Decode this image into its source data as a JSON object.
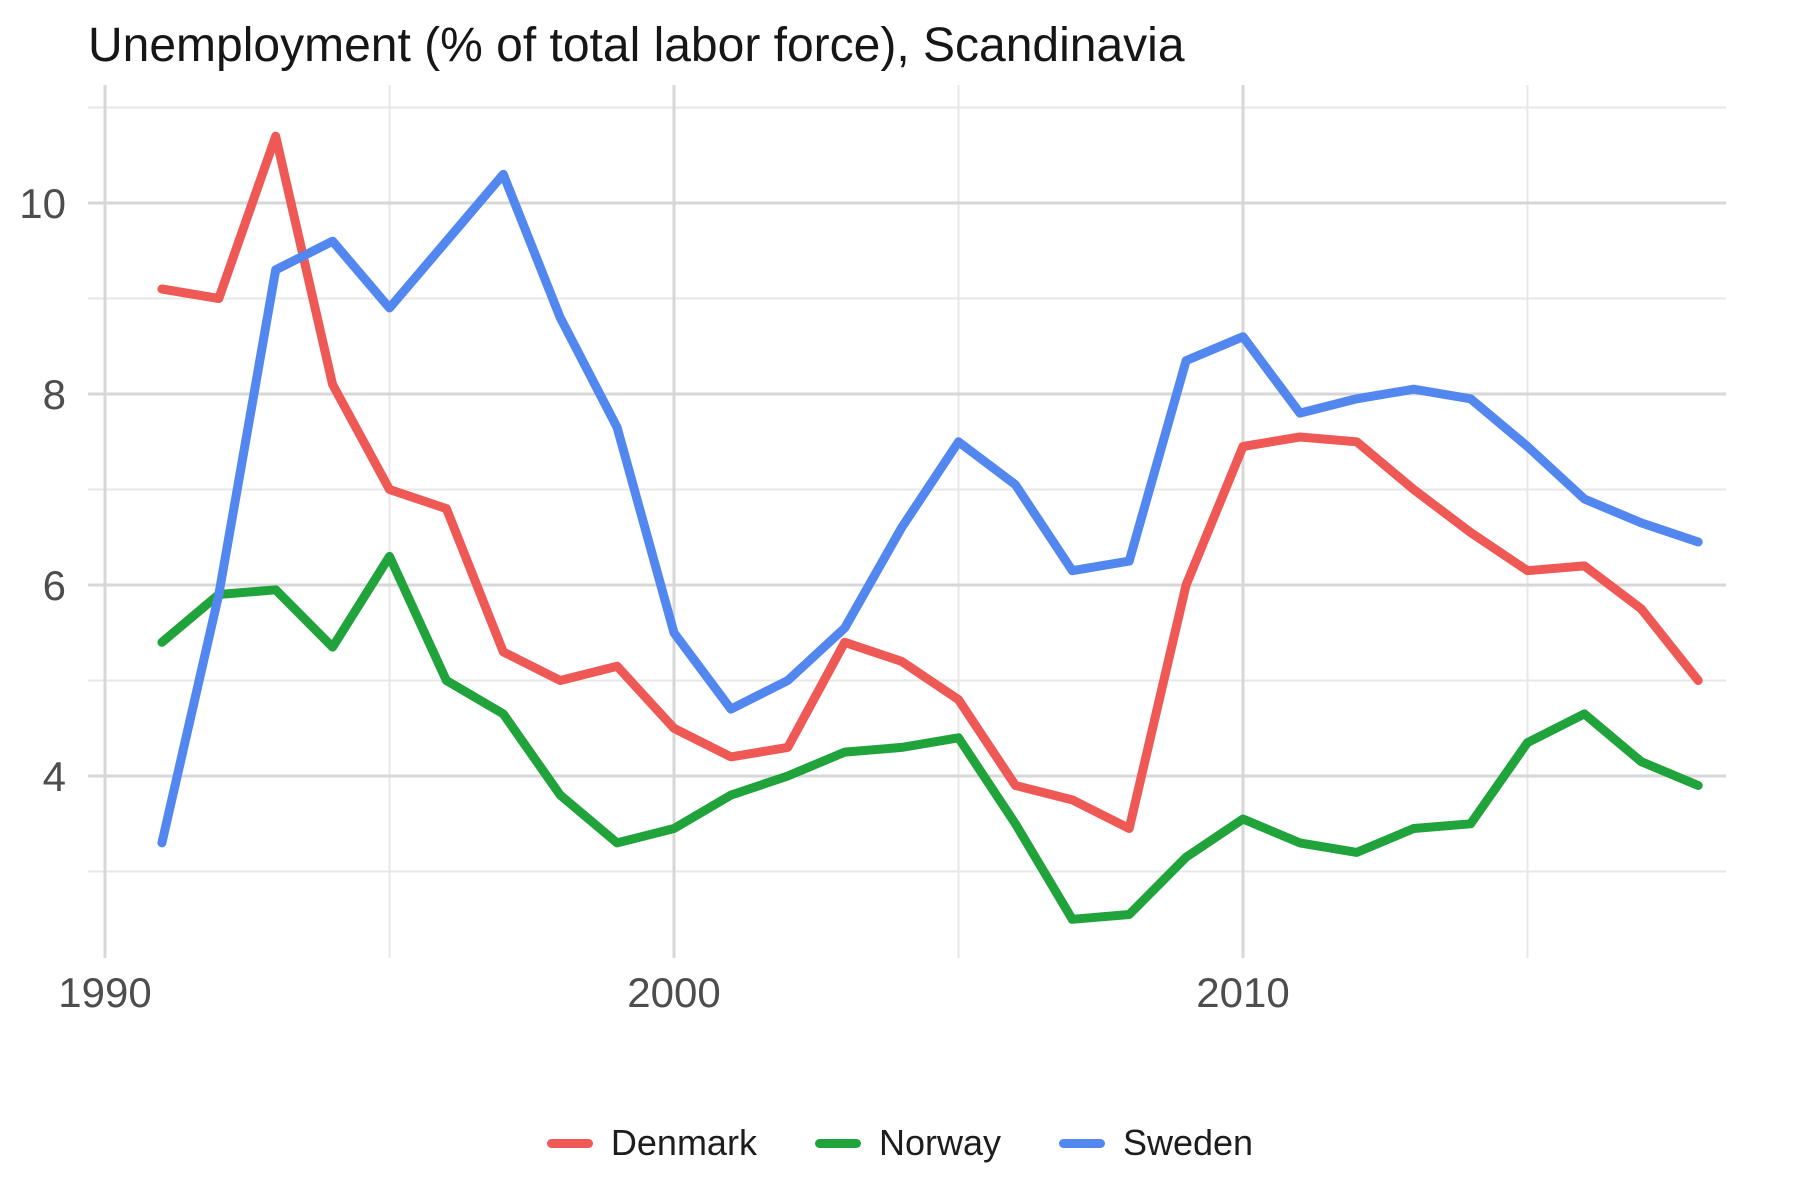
{
  "title": "Unemployment (% of total labor force), Scandinavia",
  "legend": {
    "position": "bottom",
    "items": [
      {
        "label": "Denmark",
        "color": "#ef5955"
      },
      {
        "label": "Norway",
        "color": "#1fa33a"
      },
      {
        "label": "Sweden",
        "color": "#5387f0"
      }
    ]
  },
  "axes": {
    "x_tick_labels": [
      "1990",
      "2000",
      "2010"
    ],
    "x_major_ticks": [
      1990,
      2000,
      2010
    ],
    "x_minor_ticks": [
      1995,
      2005,
      2015
    ],
    "y_tick_labels": [
      "4",
      "6",
      "8",
      "10"
    ],
    "y_major_ticks": [
      4,
      6,
      8,
      10
    ],
    "y_minor_ticks": [
      3,
      5,
      7,
      9,
      11
    ],
    "grid_major_color": "#d7d7d7",
    "grid_minor_color": "#e7e7e7",
    "tick_label_color": "#4d4d4d"
  },
  "chart_data": {
    "type": "line",
    "title": "Unemployment (% of total labor force), Scandinavia",
    "xlabel": "",
    "ylabel": "",
    "x": [
      1991,
      1992,
      1993,
      1994,
      1995,
      1996,
      1997,
      1998,
      1999,
      2000,
      2001,
      2002,
      2003,
      2004,
      2005,
      2006,
      2007,
      2008,
      2009,
      2010,
      2011,
      2012,
      2013,
      2014,
      2015,
      2016,
      2017,
      2018
    ],
    "series": [
      {
        "name": "Denmark",
        "color": "#ef5955",
        "values": [
          9.1,
          9.0,
          10.7,
          8.1,
          7.0,
          6.8,
          5.3,
          5.0,
          5.15,
          4.5,
          4.2,
          4.3,
          5.4,
          5.2,
          4.8,
          3.9,
          3.75,
          3.45,
          6.0,
          7.45,
          7.55,
          7.5,
          7.0,
          6.55,
          6.15,
          6.2,
          5.75,
          5.0
        ]
      },
      {
        "name": "Norway",
        "color": "#1fa33a",
        "values": [
          5.4,
          5.9,
          5.95,
          5.35,
          6.3,
          5.0,
          4.65,
          3.8,
          3.3,
          3.45,
          3.8,
          4.0,
          4.25,
          4.3,
          4.4,
          3.5,
          2.5,
          2.55,
          3.15,
          3.55,
          3.3,
          3.2,
          3.45,
          3.5,
          4.35,
          4.65,
          4.15,
          3.9
        ]
      },
      {
        "name": "Sweden",
        "color": "#5387f0",
        "values": [
          3.3,
          5.9,
          9.3,
          9.6,
          8.9,
          9.6,
          10.3,
          8.8,
          7.65,
          5.5,
          4.7,
          5.0,
          5.55,
          6.6,
          7.5,
          7.05,
          6.15,
          6.25,
          8.35,
          8.6,
          7.8,
          7.95,
          8.05,
          7.95,
          7.45,
          6.9,
          6.65,
          6.45
        ]
      }
    ],
    "xlim": [
      1989.7,
      2019.3
    ],
    "ylim": [
      2.2,
      11.35
    ],
    "grid": true,
    "legend_position": "bottom"
  }
}
